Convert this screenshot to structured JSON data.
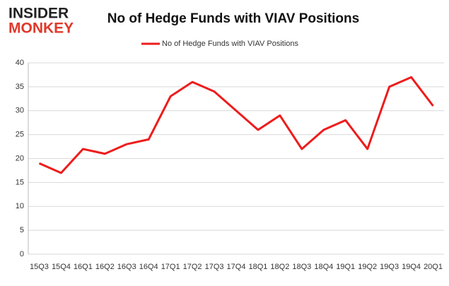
{
  "logo": {
    "line1": "INSIDER",
    "line2": "MONKEY"
  },
  "chart_data": {
    "type": "line",
    "title": "No of Hedge Funds with VIAV Positions",
    "categories": [
      "15Q3",
      "15Q4",
      "16Q1",
      "16Q2",
      "16Q3",
      "16Q4",
      "17Q1",
      "17Q2",
      "17Q3",
      "17Q4",
      "18Q1",
      "18Q2",
      "18Q3",
      "18Q4",
      "19Q1",
      "19Q2",
      "19Q3",
      "19Q4",
      "20Q1"
    ],
    "series": [
      {
        "name": "No of Hedge Funds with VIAV Positions",
        "color": "#ee1c1c",
        "values": [
          19,
          17,
          22,
          21,
          23,
          24,
          33,
          36,
          34,
          30,
          26,
          29,
          22,
          26,
          28,
          22,
          35,
          37,
          31
        ]
      }
    ],
    "ylim": [
      0,
      40
    ],
    "yticks": [
      0,
      5,
      10,
      15,
      20,
      25,
      30,
      35,
      40
    ],
    "grid": true,
    "legend": "top"
  }
}
